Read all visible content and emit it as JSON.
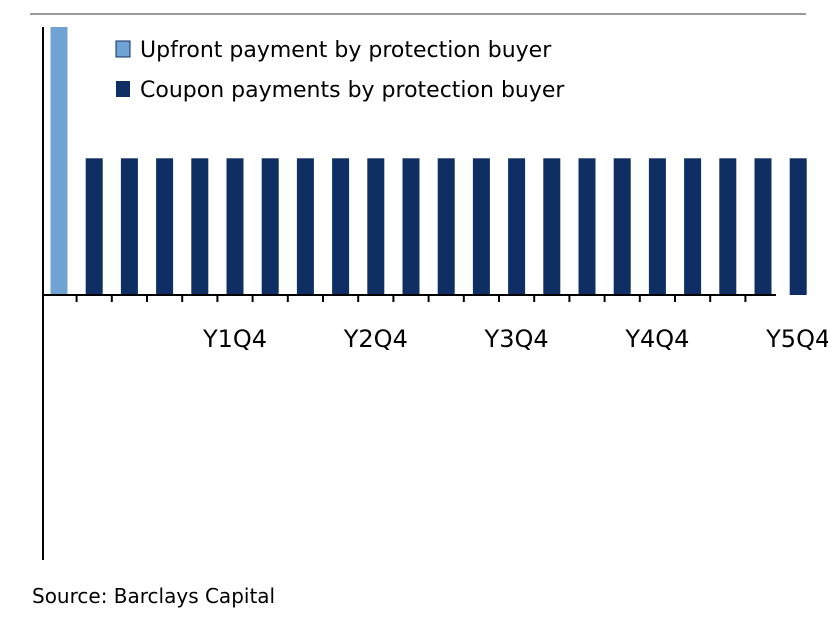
{
  "chart_data": {
    "type": "bar",
    "categories": [
      "",
      "",
      "",
      "",
      "",
      "Y1Q4",
      "",
      "",
      "",
      "Y2Q4",
      "",
      "",
      "",
      "Y3Q4",
      "",
      "",
      "",
      "Y4Q4",
      "",
      "",
      "",
      "Y5Q4"
    ],
    "series": [
      {
        "name": "Upfront payment by protection buyer",
        "color": "#6fa3d4",
        "values": [
          1.0,
          0,
          0,
          0,
          0,
          0,
          0,
          0,
          0,
          0,
          0,
          0,
          0,
          0,
          0,
          0,
          0,
          0,
          0,
          0,
          0,
          0
        ]
      },
      {
        "name": "Coupon payments by protection buyer",
        "color": "#0f2e63",
        "values": [
          0,
          0.51,
          0.51,
          0.51,
          0.51,
          0.51,
          0.51,
          0.51,
          0.51,
          0.51,
          0.51,
          0.51,
          0.51,
          0.51,
          0.51,
          0.51,
          0.51,
          0.51,
          0.51,
          0.51,
          0.51,
          0.51
        ]
      }
    ],
    "tick_labels": [
      "Y1Q4",
      "Y2Q4",
      "Y3Q4",
      "Y4Q4",
      "Y5Q4"
    ],
    "ylim": [
      -1.0,
      1.0
    ],
    "grid": false,
    "legend": "top-left"
  },
  "source": "Source: Barclays Capital"
}
